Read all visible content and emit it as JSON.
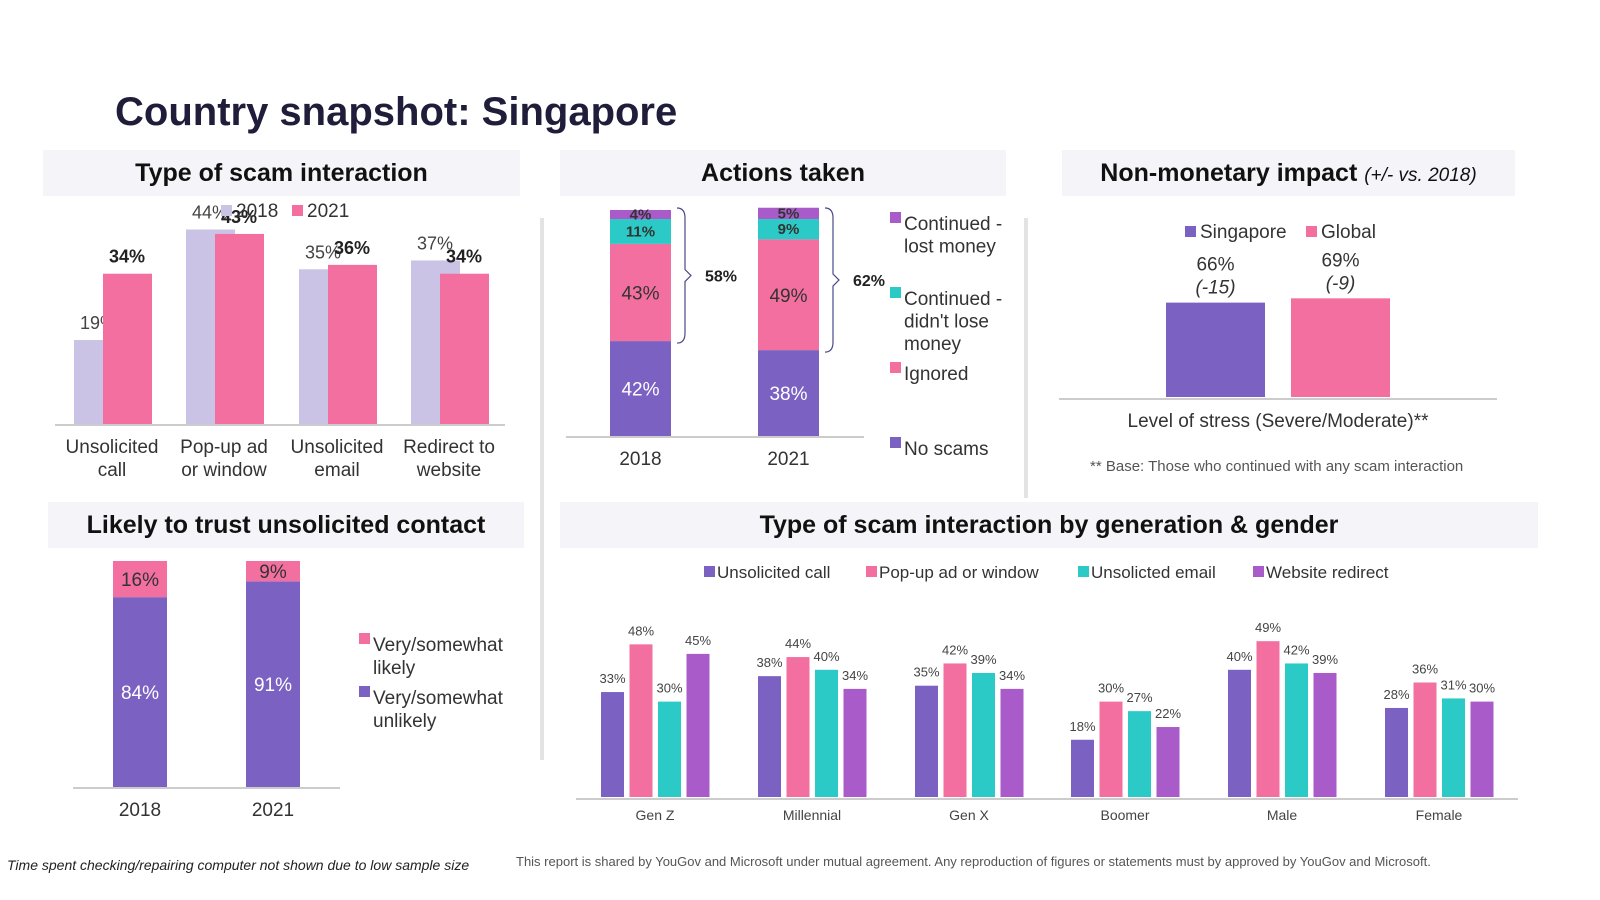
{
  "title": "Country snapshot: Singapore",
  "panels": {
    "scam_type": "Type of scam interaction",
    "actions": "Actions taken",
    "impact": "Non-monetary impact",
    "impact_sub": "(+/- vs. 2018)",
    "trust": "Likely to trust unsolicited contact",
    "generation": "Type of scam interaction by generation & gender"
  },
  "colors": {
    "light_purple": "#cbc3e6",
    "pink": "#f36f9f",
    "purple": "#7b62c2",
    "teal": "#2ccac6",
    "violet": "#a85bc9",
    "axis": "#cccccc"
  },
  "stress_base_note": "** Base: Those who continued with any scam interaction",
  "footnotes": {
    "left": "Time spent checking/repairing computer not shown due to low sample size",
    "right": "This report is shared by YouGov and Microsoft under mutual agreement. Any reproduction of figures or statements must by approved by YouGov and Microsoft."
  },
  "chart_data": [
    {
      "id": "scam_type",
      "type": "bar",
      "title": "Type of scam interaction",
      "categories": [
        "Unsolicited call",
        "Pop-up ad or window",
        "Unsolicited email",
        "Redirect to website"
      ],
      "category_lines": [
        [
          "Unsolicited",
          "call"
        ],
        [
          "Pop-up ad",
          "or window"
        ],
        [
          "Unsolicited",
          "email"
        ],
        [
          "Redirect to",
          "website"
        ]
      ],
      "series": [
        {
          "name": "2018",
          "values": [
            19,
            44,
            35,
            37
          ],
          "labels": [
            "19%",
            "44%",
            "35%",
            "37%"
          ]
        },
        {
          "name": "2021",
          "values": [
            34,
            43,
            36,
            34
          ],
          "labels": [
            "34%",
            "43%",
            "36%",
            "34%"
          ]
        }
      ],
      "ylim": [
        0,
        50
      ],
      "legend": "top"
    },
    {
      "id": "actions",
      "type": "bar",
      "stacked": true,
      "title": "Actions taken",
      "categories": [
        "2018",
        "2021"
      ],
      "series": [
        {
          "name": "No scams",
          "values": [
            42,
            38
          ],
          "labels": [
            "42%",
            "38%"
          ]
        },
        {
          "name": "Ignored",
          "values": [
            43,
            49
          ],
          "labels": [
            "43%",
            "49%"
          ]
        },
        {
          "name": "Continued - didn't lose money",
          "values": [
            11,
            9
          ],
          "labels": [
            "11%",
            "9%"
          ]
        },
        {
          "name": "Continued - lost money",
          "values": [
            4,
            5
          ],
          "labels": [
            "4%",
            "5%"
          ]
        }
      ],
      "legend_lines": [
        [
          "Continued -",
          "lost money"
        ],
        [
          "Continued -",
          "didn't lose",
          "money"
        ],
        [
          "Ignored"
        ],
        [
          "No scams"
        ]
      ],
      "brackets": [
        "58%",
        "62%"
      ],
      "legend": "right"
    },
    {
      "id": "impact",
      "type": "bar",
      "title": "Non-monetary impact",
      "categories": [
        "Level of stress (Severe/Moderate)**"
      ],
      "series": [
        {
          "name": "Singapore",
          "values": [
            66
          ],
          "label": "66%",
          "change": "(-15)"
        },
        {
          "name": "Global",
          "values": [
            69
          ],
          "label": "69%",
          "change": "(-9)"
        }
      ],
      "ylim": [
        0,
        100
      ],
      "legend": "top"
    },
    {
      "id": "trust",
      "type": "bar",
      "stacked": true,
      "title": "Likely to trust unsolicited contact",
      "categories": [
        "2018",
        "2021"
      ],
      "series": [
        {
          "name": "Very/somewhat unlikely",
          "values": [
            84,
            91
          ],
          "labels": [
            "84%",
            "91%"
          ]
        },
        {
          "name": "Very/somewhat likely",
          "values": [
            16,
            9
          ],
          "labels": [
            "16%",
            "9%"
          ]
        }
      ],
      "legend_lines": [
        [
          "Very/somewhat",
          "likely"
        ],
        [
          "Very/somewhat",
          "unlikely"
        ]
      ],
      "legend": "right"
    },
    {
      "id": "generation",
      "type": "bar",
      "title": "Type of scam interaction by generation & gender",
      "categories": [
        "Gen Z",
        "Millennial",
        "Gen X",
        "Boomer",
        "Male",
        "Female"
      ],
      "series": [
        {
          "name": "Unsolicited call",
          "values": [
            33,
            38,
            35,
            18,
            40,
            28
          ]
        },
        {
          "name": "Pop-up ad or window",
          "values": [
            48,
            44,
            42,
            30,
            49,
            36
          ]
        },
        {
          "name": "Unsolicted email",
          "values": [
            30,
            40,
            39,
            27,
            42,
            31
          ]
        },
        {
          "name": "Website redirect",
          "values": [
            45,
            34,
            34,
            22,
            39,
            30
          ]
        }
      ],
      "ylim": [
        0,
        55
      ],
      "legend": "top"
    }
  ]
}
